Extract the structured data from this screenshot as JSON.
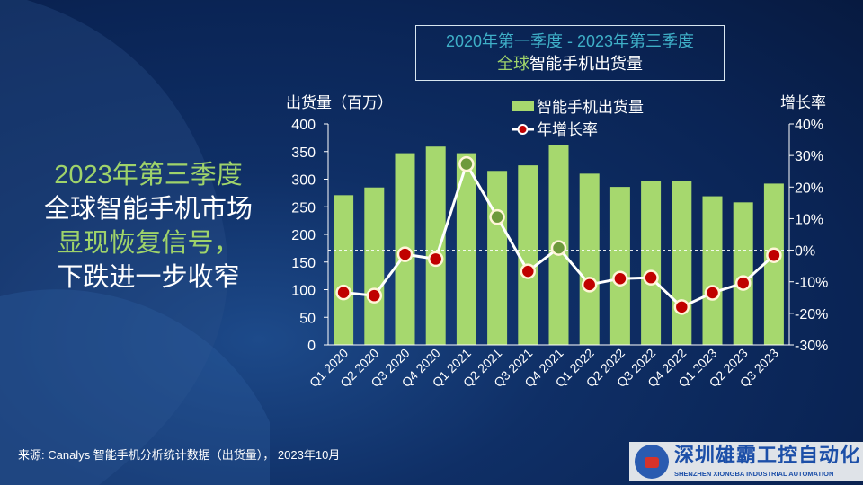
{
  "title_box": {
    "line1": "2020年第一季度 - 2023年第三季度",
    "line2_green": "全球",
    "line2_white": "智能手机出货量"
  },
  "headline": [
    "2023年第三季度",
    "全球智能手机市场",
    "显现恢复信号，",
    "下跌进一步收窄"
  ],
  "source": "来源: Canalys 智能手机分析统计数据（出货量）， 2023年10月",
  "logo": {
    "cn": "深圳雄霸工控自动化",
    "en": "SHENZHEN XIONGBA INDUSTRIAL AUTOMATION"
  },
  "colors": {
    "bar": "#a6d86e",
    "line": "#ffffff",
    "marker_negative": "#c00000",
    "marker_positive": "#6e9a3c",
    "background": "#0c2a5e"
  },
  "chart_data": {
    "type": "bar+line",
    "categories": [
      "Q1 2020",
      "Q2 2020",
      "Q3 2020",
      "Q4 2020",
      "Q1 2021",
      "Q2 2021",
      "Q3 2021",
      "Q4 2021",
      "Q1 2022",
      "Q2 2022",
      "Q3 2022",
      "Q4 2022",
      "Q1 2023",
      "Q2 2023",
      "Q3 2023"
    ],
    "series": [
      {
        "name": "智能手机出货量",
        "type": "bar",
        "axis": "left",
        "values": [
          271,
          285,
          347,
          359,
          347,
          315,
          325,
          362,
          310,
          286,
          297,
          296,
          269,
          258,
          292
        ]
      },
      {
        "name": "年增长率",
        "type": "line",
        "axis": "right",
        "values": [
          -13.4,
          -14.4,
          -1.3,
          -2.8,
          27.3,
          10.5,
          -6.7,
          0.7,
          -10.9,
          -9.0,
          -8.7,
          -18.0,
          -13.5,
          -10.4,
          -1.6
        ]
      }
    ],
    "ylabel": "出货量（百万）",
    "y2label": "增长率",
    "ylim": [
      0,
      400
    ],
    "yticks": [
      "0",
      "50",
      "100",
      "150",
      "200",
      "250",
      "300",
      "350",
      "400"
    ],
    "y2lim": [
      -30,
      40
    ],
    "y2ticks": [
      "-30%",
      "-20%",
      "-10%",
      "0%",
      "10%",
      "20%",
      "30%",
      "40%"
    ],
    "reference_line": "0% dashed",
    "grid": false,
    "legend": "top-center"
  }
}
